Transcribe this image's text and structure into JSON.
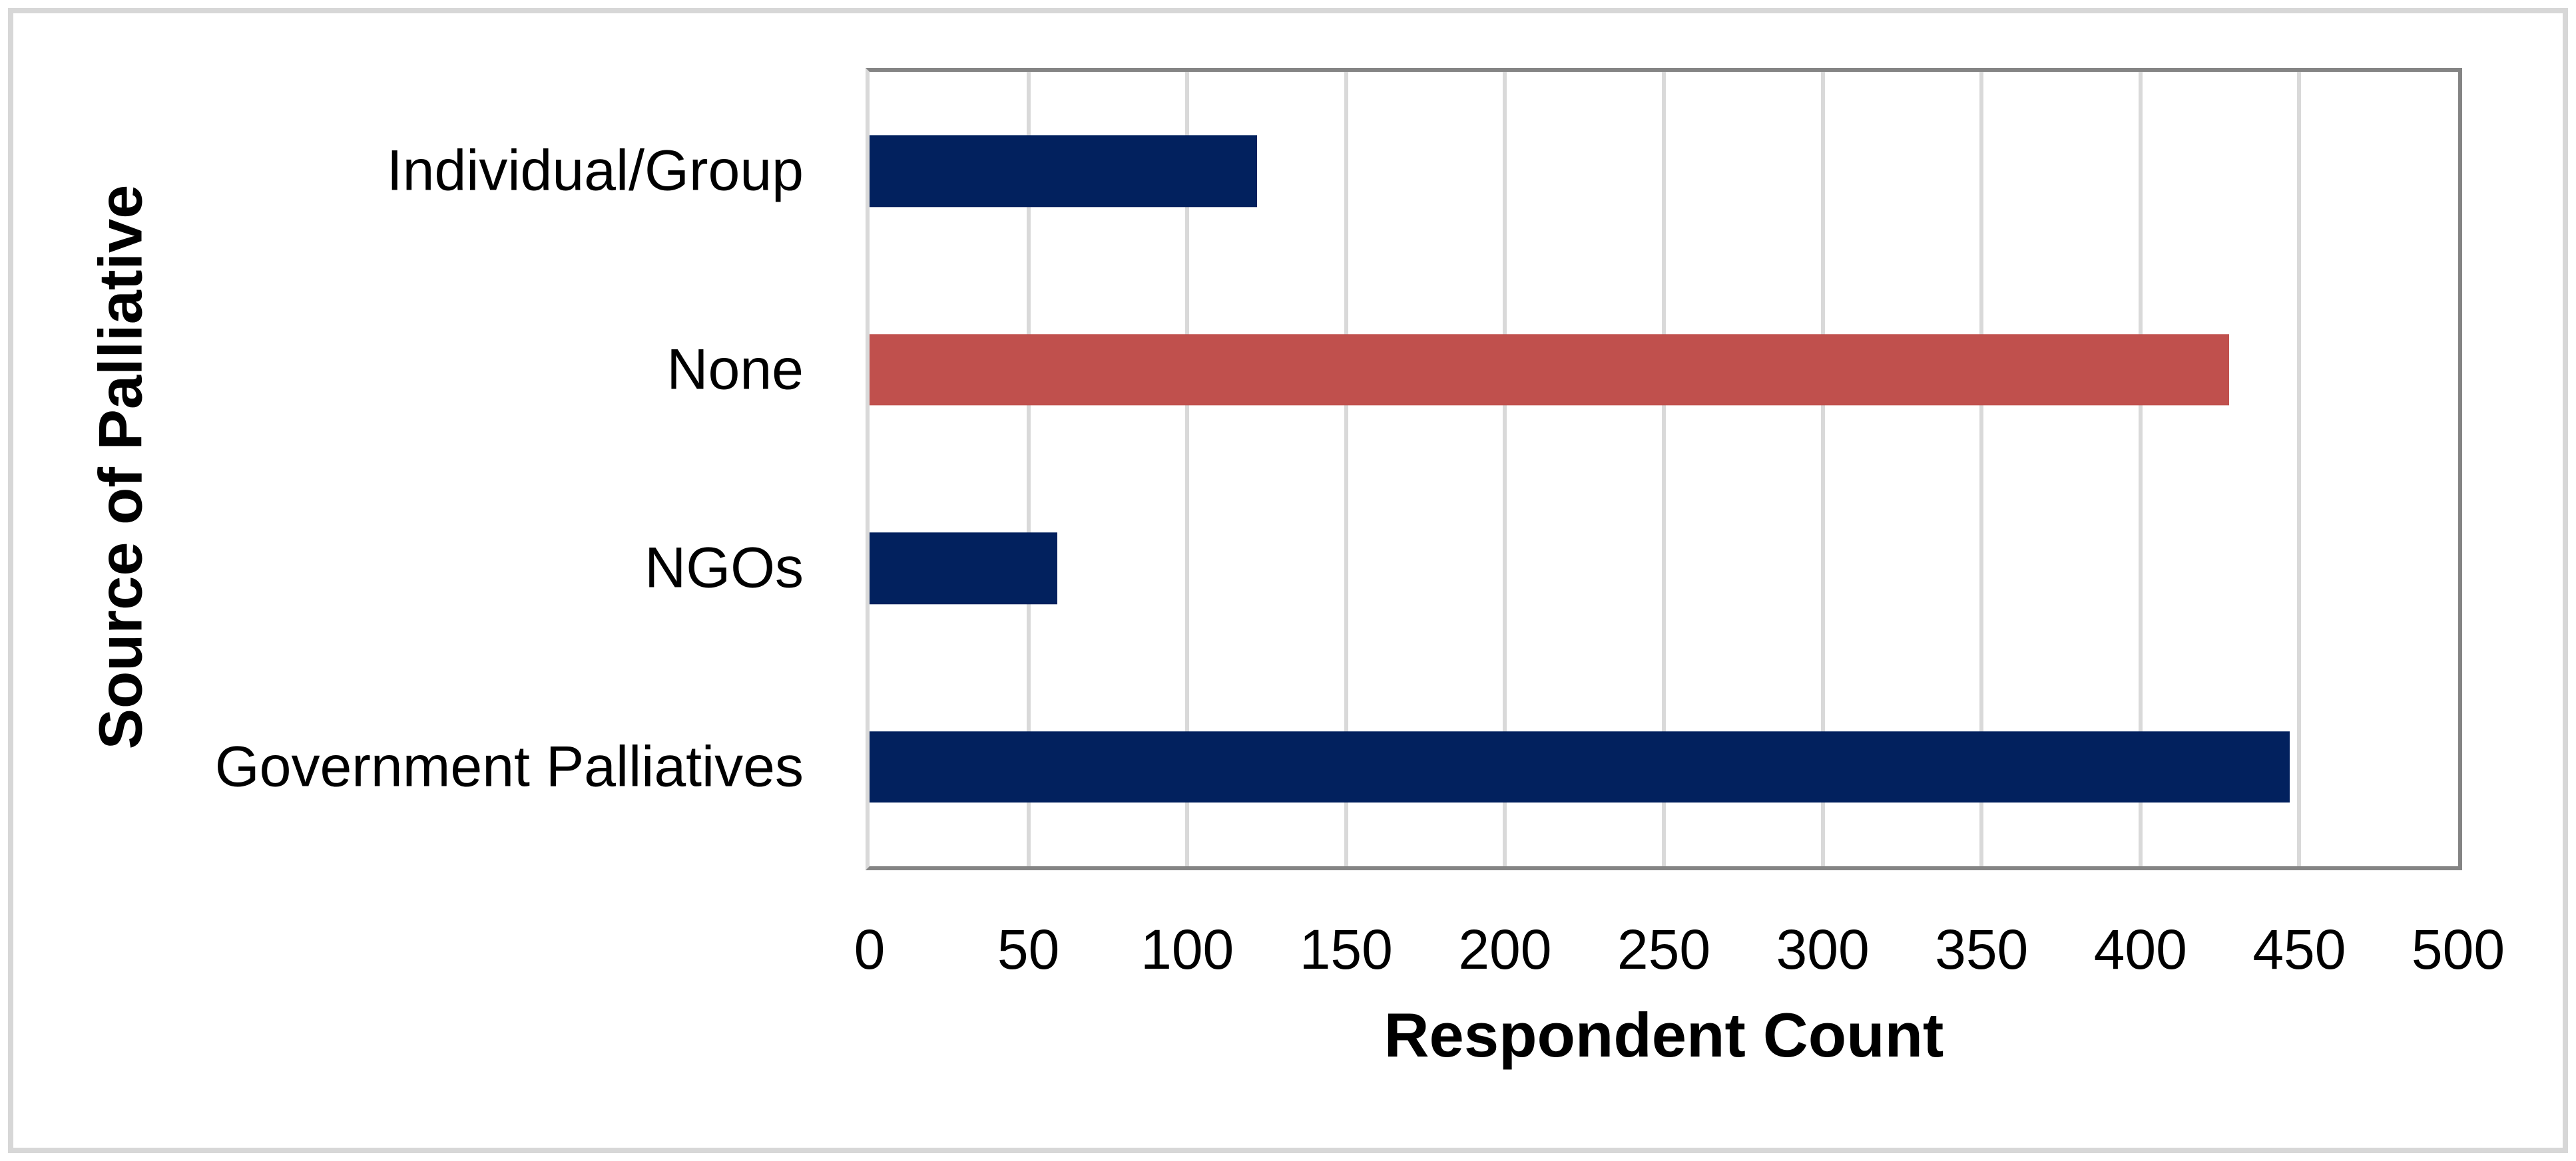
{
  "figure": {
    "background_color": "#ffffff",
    "outer_border_color": "#d7d7d7",
    "plot_border_color": "#848484",
    "gridline_color": "#d9d9d9",
    "text_color": "#000000"
  },
  "chart_data": {
    "type": "bar",
    "orientation": "horizontal",
    "title": "",
    "xlabel": "Respondent Count",
    "ylabel": "Source of Palliative",
    "categories": [
      "Individual/Group",
      "None",
      "NGOs",
      "Government Palliatives"
    ],
    "values": [
      122,
      428,
      59,
      447
    ],
    "bar_colors": [
      "#02215e",
      "#c0504d",
      "#02215e",
      "#02215e"
    ],
    "accent_navy": "#02215e",
    "accent_red": "#c0504d",
    "xlim": [
      0,
      500
    ],
    "x_ticks": [
      0,
      50,
      100,
      150,
      200,
      250,
      300,
      350,
      400,
      450,
      500
    ],
    "grid": "vertical-on",
    "legend_position": "none"
  }
}
